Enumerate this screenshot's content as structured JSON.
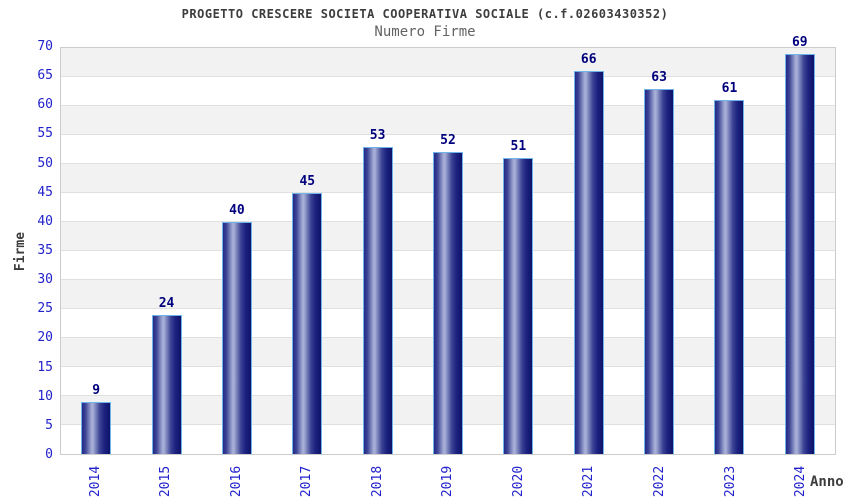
{
  "header": {
    "title": "PROGETTO CRESCERE SOCIETA COOPERATIVA SOCIALE (c.f.02603430352)",
    "subtitle": "Numero Firme"
  },
  "chart_data": {
    "type": "bar",
    "title": "PROGETTO CRESCERE SOCIETA COOPERATIVA SOCIALE (c.f.02603430352)",
    "subtitle": "Numero Firme",
    "categories": [
      "2014",
      "2015",
      "2016",
      "2017",
      "2018",
      "2019",
      "2020",
      "2021",
      "2022",
      "2023",
      "2024"
    ],
    "values": [
      9,
      24,
      40,
      45,
      53,
      52,
      51,
      66,
      63,
      61,
      69
    ],
    "xlabel": "Anno",
    "ylabel": "Firme",
    "ylim": [
      0,
      70
    ],
    "ytick_step": 5,
    "yticks": [
      0,
      5,
      10,
      15,
      20,
      25,
      30,
      35,
      40,
      45,
      50,
      55,
      60,
      65,
      70
    ],
    "grid": "horizontal-bands-alternating",
    "legend": "none",
    "colors": {
      "bar_dark": "#1a2080",
      "bar_highlight": "#abb2d9",
      "bar_border": "#6fb4e9",
      "tick_label": "#2222cc",
      "value_label": "#00007d",
      "title_text": "#3d3d3d",
      "subtitle_text": "#636363",
      "band_gray": "#f2f2f2",
      "band_white": "#ffffff",
      "gridline": "#e0e0e0",
      "plot_border": "#cccccc"
    }
  }
}
